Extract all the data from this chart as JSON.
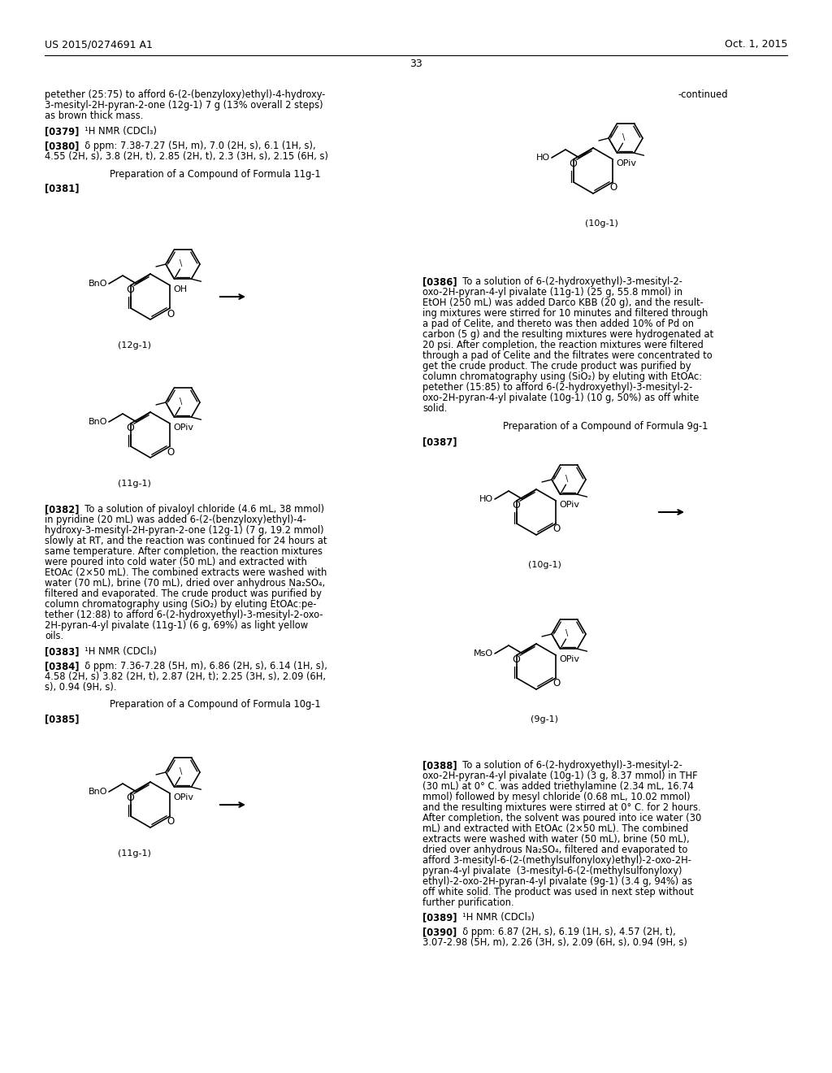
{
  "background_color": "#ffffff",
  "header_left": "US 2015/0274691 A1",
  "header_right": "Oct. 1, 2015",
  "page_number": "33"
}
